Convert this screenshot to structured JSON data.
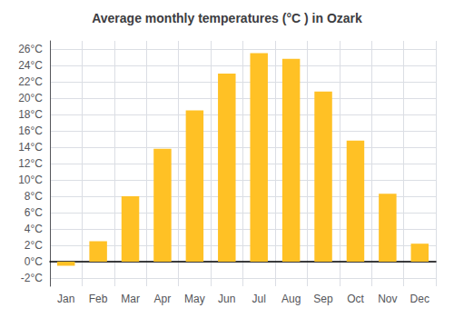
{
  "chart_data": {
    "type": "bar",
    "title": "Average monthly temperatures (°C ) in Ozark",
    "categories": [
      "Jan",
      "Feb",
      "Mar",
      "Apr",
      "May",
      "Jun",
      "Jul",
      "Aug",
      "Sep",
      "Oct",
      "Nov",
      "Dec"
    ],
    "values": [
      -0.5,
      2.5,
      8.0,
      13.8,
      18.5,
      23.0,
      25.5,
      24.8,
      20.8,
      14.8,
      8.3,
      2.2
    ],
    "color": "#FFC125",
    "ylim": [
      -3,
      27
    ],
    "yticks": [
      {
        "value": -2,
        "label": "-2°C"
      },
      {
        "value": 0,
        "label": "0°C"
      },
      {
        "value": 2,
        "label": "2°C"
      },
      {
        "value": 4,
        "label": "4°C"
      },
      {
        "value": 6,
        "label": "6°C"
      },
      {
        "value": 8,
        "label": "8°C"
      },
      {
        "value": 10,
        "label": "10°C"
      },
      {
        "value": 12,
        "label": "12°C"
      },
      {
        "value": 14,
        "label": "14°C"
      },
      {
        "value": 16,
        "label": "16°C"
      },
      {
        "value": 18,
        "label": "18°C"
      },
      {
        "value": 20,
        "label": "20°C"
      },
      {
        "value": 22,
        "label": "22°C"
      },
      {
        "value": 24,
        "label": "24°C"
      },
      {
        "value": 26,
        "label": "26°C"
      }
    ],
    "grid": true
  }
}
